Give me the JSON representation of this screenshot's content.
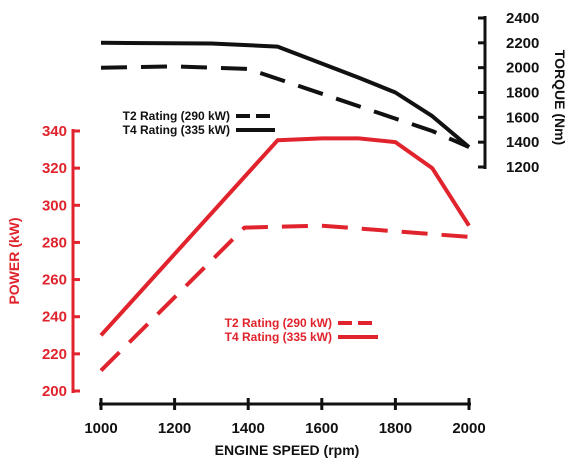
{
  "chart_data": {
    "type": "line",
    "xlabel": "ENGINE SPEED (rpm)",
    "x_ticks": [
      "1000",
      "1200",
      "1400",
      "1600",
      "1800",
      "2000"
    ],
    "xlim": [
      1000,
      2000
    ],
    "power_axis": {
      "label": "POWER (kW)",
      "ticks": [
        "200",
        "220",
        "240",
        "260",
        "280",
        "300",
        "320",
        "340"
      ],
      "ylim": [
        200,
        340
      ],
      "color": "#e0232c"
    },
    "torque_axis": {
      "label": "TORQUE (Nm)",
      "ticks": [
        "1200",
        "1400",
        "1600",
        "1800",
        "2000",
        "2200",
        "2400"
      ],
      "ylim": [
        1200,
        2400
      ],
      "color": "#111111"
    },
    "torque_legend": [
      {
        "label": "T2 Rating (290 kW)",
        "style": "dashed"
      },
      {
        "label": "T4 Rating (335 kW)",
        "style": "solid"
      }
    ],
    "power_legend": [
      {
        "label": "T2 Rating (290 kW)",
        "style": "dashed"
      },
      {
        "label": "T4 Rating (335 kW)",
        "style": "solid"
      }
    ],
    "series": [
      {
        "axis": "torque",
        "rating": "T4",
        "style": "solid",
        "color": "#111111",
        "x": [
          1000,
          1300,
          1480,
          1700,
          1800,
          1900,
          2000
        ],
        "y": [
          2200,
          2195,
          2170,
          1920,
          1800,
          1610,
          1360
        ]
      },
      {
        "axis": "torque",
        "rating": "T2",
        "style": "dashed",
        "color": "#111111",
        "x": [
          1000,
          1200,
          1400,
          1500,
          1800,
          1900,
          2000
        ],
        "y": [
          2000,
          2010,
          1990,
          1890,
          1590,
          1490,
          1360
        ]
      },
      {
        "axis": "power",
        "rating": "T4",
        "style": "solid",
        "color": "#e0232c",
        "x": [
          1000,
          1480,
          1600,
          1700,
          1800,
          1900,
          2000
        ],
        "y": [
          230,
          335,
          336,
          336,
          334,
          320,
          289
        ]
      },
      {
        "axis": "power",
        "rating": "T2",
        "style": "dashed",
        "color": "#e0232c",
        "x": [
          1000,
          1390,
          1600,
          1800,
          2000
        ],
        "y": [
          211,
          288,
          289,
          286,
          283
        ]
      }
    ]
  }
}
